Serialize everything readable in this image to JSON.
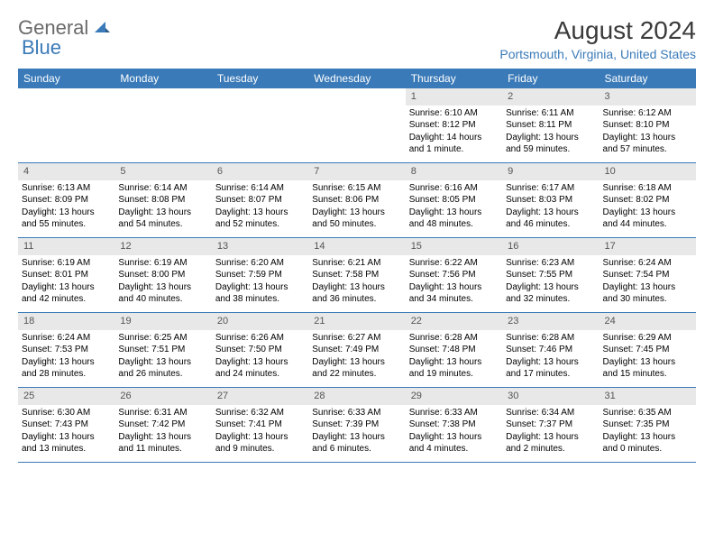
{
  "brand": {
    "part1": "General",
    "part2": "Blue"
  },
  "title": "August 2024",
  "location": "Portsmouth, Virginia, United States",
  "colors": {
    "header_bg": "#3a7ab8",
    "daynum_bg": "#e8e8e8",
    "text": "#000000",
    "brand_gray": "#6a6a6a",
    "brand_blue": "#3a7ab8"
  },
  "weekdays": [
    "Sunday",
    "Monday",
    "Tuesday",
    "Wednesday",
    "Thursday",
    "Friday",
    "Saturday"
  ],
  "weeks": [
    [
      {
        "n": "",
        "sr": "",
        "ss": "",
        "dl": ""
      },
      {
        "n": "",
        "sr": "",
        "ss": "",
        "dl": ""
      },
      {
        "n": "",
        "sr": "",
        "ss": "",
        "dl": ""
      },
      {
        "n": "",
        "sr": "",
        "ss": "",
        "dl": ""
      },
      {
        "n": "1",
        "sr": "Sunrise: 6:10 AM",
        "ss": "Sunset: 8:12 PM",
        "dl": "Daylight: 14 hours and 1 minute."
      },
      {
        "n": "2",
        "sr": "Sunrise: 6:11 AM",
        "ss": "Sunset: 8:11 PM",
        "dl": "Daylight: 13 hours and 59 minutes."
      },
      {
        "n": "3",
        "sr": "Sunrise: 6:12 AM",
        "ss": "Sunset: 8:10 PM",
        "dl": "Daylight: 13 hours and 57 minutes."
      }
    ],
    [
      {
        "n": "4",
        "sr": "Sunrise: 6:13 AM",
        "ss": "Sunset: 8:09 PM",
        "dl": "Daylight: 13 hours and 55 minutes."
      },
      {
        "n": "5",
        "sr": "Sunrise: 6:14 AM",
        "ss": "Sunset: 8:08 PM",
        "dl": "Daylight: 13 hours and 54 minutes."
      },
      {
        "n": "6",
        "sr": "Sunrise: 6:14 AM",
        "ss": "Sunset: 8:07 PM",
        "dl": "Daylight: 13 hours and 52 minutes."
      },
      {
        "n": "7",
        "sr": "Sunrise: 6:15 AM",
        "ss": "Sunset: 8:06 PM",
        "dl": "Daylight: 13 hours and 50 minutes."
      },
      {
        "n": "8",
        "sr": "Sunrise: 6:16 AM",
        "ss": "Sunset: 8:05 PM",
        "dl": "Daylight: 13 hours and 48 minutes."
      },
      {
        "n": "9",
        "sr": "Sunrise: 6:17 AM",
        "ss": "Sunset: 8:03 PM",
        "dl": "Daylight: 13 hours and 46 minutes."
      },
      {
        "n": "10",
        "sr": "Sunrise: 6:18 AM",
        "ss": "Sunset: 8:02 PM",
        "dl": "Daylight: 13 hours and 44 minutes."
      }
    ],
    [
      {
        "n": "11",
        "sr": "Sunrise: 6:19 AM",
        "ss": "Sunset: 8:01 PM",
        "dl": "Daylight: 13 hours and 42 minutes."
      },
      {
        "n": "12",
        "sr": "Sunrise: 6:19 AM",
        "ss": "Sunset: 8:00 PM",
        "dl": "Daylight: 13 hours and 40 minutes."
      },
      {
        "n": "13",
        "sr": "Sunrise: 6:20 AM",
        "ss": "Sunset: 7:59 PM",
        "dl": "Daylight: 13 hours and 38 minutes."
      },
      {
        "n": "14",
        "sr": "Sunrise: 6:21 AM",
        "ss": "Sunset: 7:58 PM",
        "dl": "Daylight: 13 hours and 36 minutes."
      },
      {
        "n": "15",
        "sr": "Sunrise: 6:22 AM",
        "ss": "Sunset: 7:56 PM",
        "dl": "Daylight: 13 hours and 34 minutes."
      },
      {
        "n": "16",
        "sr": "Sunrise: 6:23 AM",
        "ss": "Sunset: 7:55 PM",
        "dl": "Daylight: 13 hours and 32 minutes."
      },
      {
        "n": "17",
        "sr": "Sunrise: 6:24 AM",
        "ss": "Sunset: 7:54 PM",
        "dl": "Daylight: 13 hours and 30 minutes."
      }
    ],
    [
      {
        "n": "18",
        "sr": "Sunrise: 6:24 AM",
        "ss": "Sunset: 7:53 PM",
        "dl": "Daylight: 13 hours and 28 minutes."
      },
      {
        "n": "19",
        "sr": "Sunrise: 6:25 AM",
        "ss": "Sunset: 7:51 PM",
        "dl": "Daylight: 13 hours and 26 minutes."
      },
      {
        "n": "20",
        "sr": "Sunrise: 6:26 AM",
        "ss": "Sunset: 7:50 PM",
        "dl": "Daylight: 13 hours and 24 minutes."
      },
      {
        "n": "21",
        "sr": "Sunrise: 6:27 AM",
        "ss": "Sunset: 7:49 PM",
        "dl": "Daylight: 13 hours and 22 minutes."
      },
      {
        "n": "22",
        "sr": "Sunrise: 6:28 AM",
        "ss": "Sunset: 7:48 PM",
        "dl": "Daylight: 13 hours and 19 minutes."
      },
      {
        "n": "23",
        "sr": "Sunrise: 6:28 AM",
        "ss": "Sunset: 7:46 PM",
        "dl": "Daylight: 13 hours and 17 minutes."
      },
      {
        "n": "24",
        "sr": "Sunrise: 6:29 AM",
        "ss": "Sunset: 7:45 PM",
        "dl": "Daylight: 13 hours and 15 minutes."
      }
    ],
    [
      {
        "n": "25",
        "sr": "Sunrise: 6:30 AM",
        "ss": "Sunset: 7:43 PM",
        "dl": "Daylight: 13 hours and 13 minutes."
      },
      {
        "n": "26",
        "sr": "Sunrise: 6:31 AM",
        "ss": "Sunset: 7:42 PM",
        "dl": "Daylight: 13 hours and 11 minutes."
      },
      {
        "n": "27",
        "sr": "Sunrise: 6:32 AM",
        "ss": "Sunset: 7:41 PM",
        "dl": "Daylight: 13 hours and 9 minutes."
      },
      {
        "n": "28",
        "sr": "Sunrise: 6:33 AM",
        "ss": "Sunset: 7:39 PM",
        "dl": "Daylight: 13 hours and 6 minutes."
      },
      {
        "n": "29",
        "sr": "Sunrise: 6:33 AM",
        "ss": "Sunset: 7:38 PM",
        "dl": "Daylight: 13 hours and 4 minutes."
      },
      {
        "n": "30",
        "sr": "Sunrise: 6:34 AM",
        "ss": "Sunset: 7:37 PM",
        "dl": "Daylight: 13 hours and 2 minutes."
      },
      {
        "n": "31",
        "sr": "Sunrise: 6:35 AM",
        "ss": "Sunset: 7:35 PM",
        "dl": "Daylight: 13 hours and 0 minutes."
      }
    ]
  ]
}
